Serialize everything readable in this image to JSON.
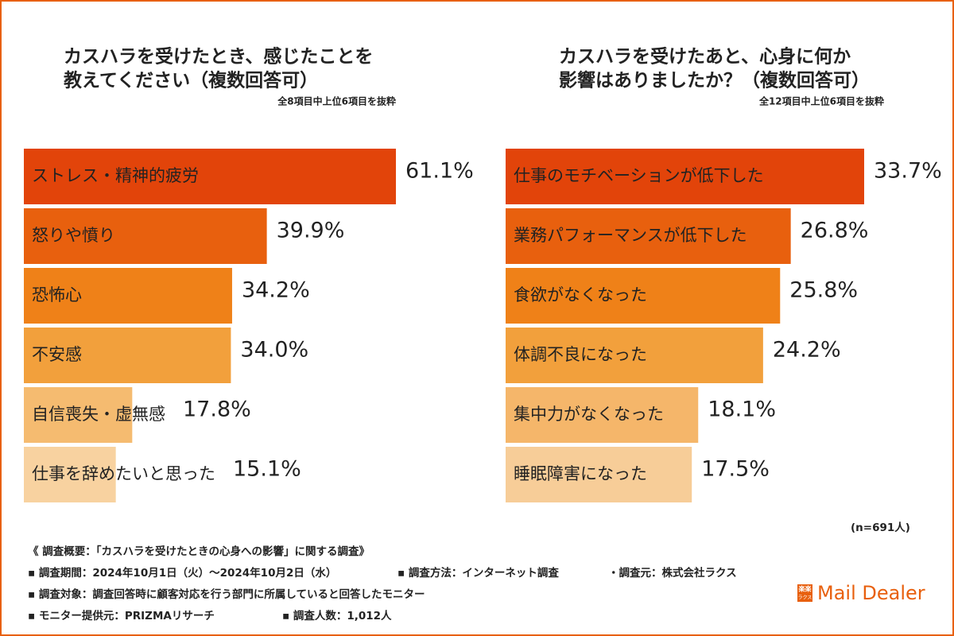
{
  "chart_data": [
    {
      "type": "bar",
      "orientation": "horizontal",
      "title": [
        "カスハラを受けたとき、感じたことを",
        "教えてください（複数回答可）"
      ],
      "subtitle": "全8項目中上位6項目を抜粋",
      "categories": [
        "ストレス・精神的疲労",
        "怒りや憤り",
        "恐怖心",
        "不安感",
        "自信喪失・虚無感",
        "仕事を辞めたいと思った"
      ],
      "values": [
        61.1,
        39.9,
        34.2,
        34.0,
        17.8,
        15.1
      ],
      "value_labels": [
        "61.1%",
        "39.9%",
        "34.2%",
        "34.0%",
        "17.8%",
        "15.1%"
      ],
      "colors": [
        "#e2440a",
        "#e8600e",
        "#ef8118",
        "#f2a03c",
        "#f5bb70",
        "#f8d2a0"
      ]
    },
    {
      "type": "bar",
      "orientation": "horizontal",
      "title": [
        "カスハラを受けたあと、心身に何か",
        "影響はありましたか？（複数回答可）"
      ],
      "subtitle": "全12項目中上位6項目を抜粋",
      "categories": [
        "仕事のモチベーションが低下した",
        "業務パフォーマンスが低下した",
        "食欲がなくなった",
        "体調不良になった",
        "集中力がなくなった",
        "睡眠障害になった"
      ],
      "values": [
        33.7,
        26.8,
        25.8,
        24.2,
        18.1,
        17.5
      ],
      "value_labels": [
        "33.7%",
        "26.8%",
        "25.8%",
        "24.2%",
        "18.1%",
        "17.5%"
      ],
      "colors": [
        "#e2440a",
        "#e8600e",
        "#ef8118",
        "#f2a03c",
        "#f5b66a",
        "#f7cd98"
      ]
    }
  ],
  "sample_note": "(n=691人)",
  "notes": {
    "heading": "《 調査概要：「カスハラを受けたときの心身への影響」に関する調査》",
    "items": [
      "▪ 調査期間：2024年10月1日（火）～2024年10月2日（水）",
      "▪ 調査方法：インターネット調査",
      "・調査元：株式会社ラクス",
      "▪ 調査対象：調査回答時に顧客対応を行う部門に所属していると回答したモニター",
      "▪ モニター提供元：PRIZMAリサーチ",
      "▪ 調査人数：1,012人"
    ]
  },
  "logo": {
    "mark": "楽楽",
    "kana": "ラクス",
    "name": "Mail Dealer"
  }
}
